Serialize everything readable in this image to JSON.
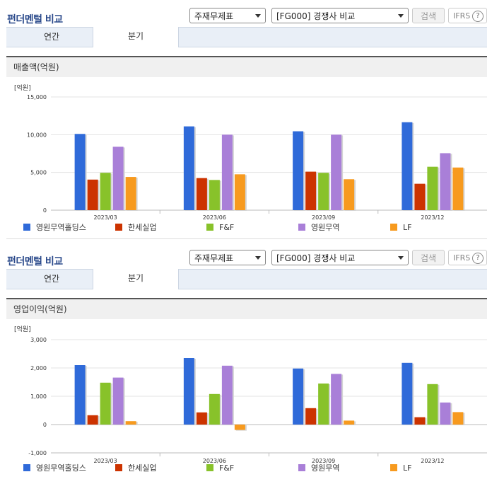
{
  "panels": [
    {
      "title": "펀더멘털 비교",
      "select1": "주재무제표",
      "select2": "[FG000] 경쟁사 비교",
      "search_label": "검색",
      "ifrs_label": "IFRS",
      "help": "?",
      "tabs": [
        "연간",
        "분기"
      ],
      "active_tab": 1,
      "subtitle": "매출액(억원)"
    },
    {
      "title": "펀더멘털 비교",
      "select1": "주재무제표",
      "select2": "[FG000] 경쟁사 비교",
      "search_label": "검색",
      "ifrs_label": "IFRS",
      "help": "?",
      "tabs": [
        "연간",
        "분기"
      ],
      "active_tab": 1,
      "subtitle": "영업이익(억원)"
    }
  ],
  "colors": {
    "영원무역홀딩스": "#2f6ad9",
    "한세실업": "#cc3300",
    "F&F": "#88c22a",
    "영원무역": "#a97fd8",
    "LF": "#f79a1e"
  },
  "chart_data": [
    {
      "type": "bar",
      "unit": "[억원]",
      "categories": [
        "2023/03",
        "2023/06",
        "2023/09",
        "2023/12"
      ],
      "ylim": [
        0,
        15000
      ],
      "yticks": [
        0,
        5000,
        10000,
        15000
      ],
      "ytick_labels": [
        "0",
        "5,000",
        "10,000",
        "15,000"
      ],
      "grid": true,
      "legend_position": "bottom",
      "series": [
        {
          "name": "영원무역홀딩스",
          "values": [
            10100,
            11100,
            10450,
            11650
          ]
        },
        {
          "name": "한세실업",
          "values": [
            4050,
            4250,
            5100,
            3500
          ]
        },
        {
          "name": "F&F",
          "values": [
            4950,
            4000,
            4950,
            5750
          ]
        },
        {
          "name": "영원무역",
          "values": [
            8400,
            10000,
            10000,
            7550
          ]
        },
        {
          "name": "LF",
          "values": [
            4400,
            4750,
            4100,
            5650
          ]
        }
      ]
    },
    {
      "type": "bar",
      "unit": "[억원]",
      "categories": [
        "2023/03",
        "2023/06",
        "2023/09",
        "2023/12"
      ],
      "ylim": [
        -1000,
        3000
      ],
      "yticks": [
        -1000,
        0,
        1000,
        2000,
        3000
      ],
      "ytick_labels": [
        "-1,000",
        "0",
        "1,000",
        "2,000",
        "3,000"
      ],
      "grid": true,
      "legend_position": "bottom",
      "series": [
        {
          "name": "영원무역홀딩스",
          "values": [
            2100,
            2350,
            1980,
            2180
          ]
        },
        {
          "name": "한세실업",
          "values": [
            330,
            430,
            580,
            260
          ]
        },
        {
          "name": "F&F",
          "values": [
            1480,
            1080,
            1450,
            1430
          ]
        },
        {
          "name": "영원무역",
          "values": [
            1660,
            2080,
            1790,
            780
          ]
        },
        {
          "name": "LF",
          "values": [
            120,
            -190,
            140,
            440
          ]
        }
      ]
    }
  ]
}
